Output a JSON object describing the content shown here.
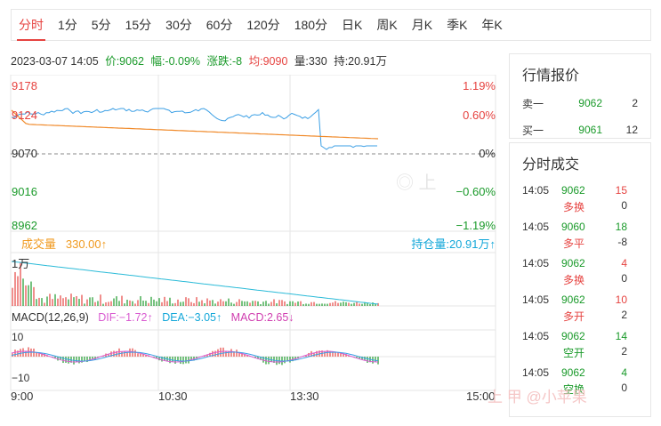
{
  "tabs": [
    "分时",
    "1分",
    "5分",
    "15分",
    "30分",
    "60分",
    "120分",
    "180分",
    "日K",
    "周K",
    "月K",
    "季K",
    "年K"
  ],
  "info": {
    "datetime": "2023-03-07 14:05",
    "price": "价:9062",
    "amplitude": "幅:-0.09%",
    "change": "涨跌:-8",
    "avg": "均:9090",
    "volume": "量:330",
    "hold": "持:20.91万"
  },
  "price_axis": [
    "9178",
    "9124",
    "9070",
    "9016",
    "8962"
  ],
  "pct_axis": [
    "1.19%",
    "0.60%",
    "0%",
    "−0.60%",
    "−1.19%"
  ],
  "vol_label": "成交量",
  "vol_value": "330.00",
  "oi_label": "持仓量:20.91万",
  "vol_axis": "1万",
  "macd": {
    "name": "MACD(12,26,9)",
    "dif": "DIF:−1.72",
    "dea": "DEA:−3.05",
    "macd": "MACD:2.65",
    "axis_top": "10",
    "axis_bottom": "−10"
  },
  "time_axis": [
    "9:00",
    "10:30",
    "13:30",
    "15:00"
  ],
  "quote": {
    "title": "行情报价",
    "rows": [
      {
        "label": "卖一",
        "price": "9062",
        "qty": "2"
      },
      {
        "label": "买一",
        "price": "9061",
        "qty": "12"
      }
    ]
  },
  "trades": {
    "title": "分时成交",
    "rows": [
      {
        "time": "14:05",
        "price": "9062",
        "qty": "15",
        "type": "多换",
        "oi": "0",
        "qcolor": "red"
      },
      {
        "time": "14:05",
        "price": "9060",
        "qty": "18",
        "type": "多平",
        "oi": "-8",
        "qcolor": "green"
      },
      {
        "time": "14:05",
        "price": "9062",
        "qty": "4",
        "type": "多换",
        "oi": "0",
        "qcolor": "red"
      },
      {
        "time": "14:05",
        "price": "9062",
        "qty": "10",
        "type": "多开",
        "oi": "2",
        "qcolor": "red"
      },
      {
        "time": "14:05",
        "price": "9062",
        "qty": "14",
        "type": "空开",
        "oi": "2",
        "qcolor": "green"
      },
      {
        "time": "14:05",
        "price": "9062",
        "qty": "4",
        "type": "空换",
        "oi": "0",
        "qcolor": "green"
      }
    ]
  },
  "watermark": "上 甲 @小苹果",
  "colors": {
    "up": "#e64340",
    "down": "#1a9a2a",
    "avg": "#f08a2a",
    "price": "#3b9fe5",
    "oi": "#2bbbd8",
    "dif": "#d95bd1",
    "dea": "#3b9fe5"
  },
  "chart_data": {
    "type": "line",
    "xlabel": "",
    "ylabel": "",
    "ylim": [
      8962,
      9178
    ],
    "x_range": [
      "9:00",
      "15:00"
    ],
    "series": [],
    "prev_close": 9070
  }
}
